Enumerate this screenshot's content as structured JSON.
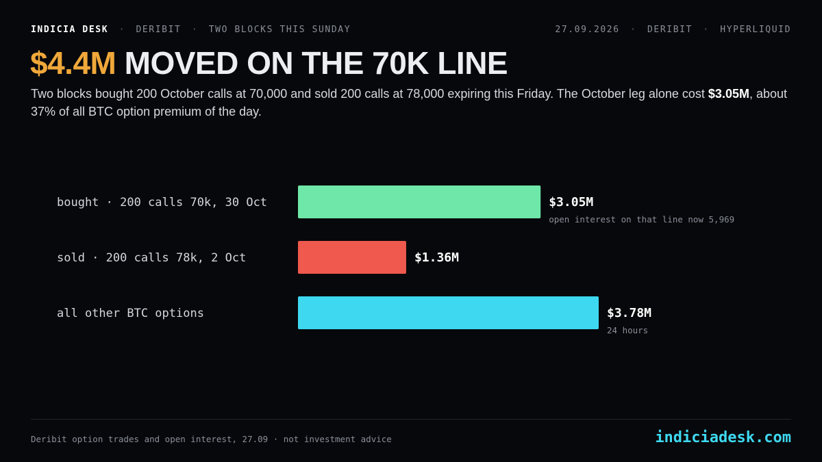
{
  "header": {
    "brand": "INDICIA DESK",
    "tagline_1": "DERIBIT",
    "tagline_2": "TWO BLOCKS THIS SUNDAY",
    "date": "27.09.2026",
    "venue_1": "DERIBIT",
    "venue_2": "HYPERLIQUID",
    "separator": "·"
  },
  "headline": {
    "accent": "$4.4M",
    "rest": "MOVED ON THE 70K LINE"
  },
  "subtitle": {
    "text_1": "Two blocks bought 200 October calls at 70,000 and sold 200 calls at 78,000 expiring this Friday. The October leg alone cost ",
    "bold": "$3.05M",
    "text_2": ", about 37% of all BTC option premium of the day."
  },
  "chart_data": {
    "type": "bar",
    "orientation": "horizontal",
    "categories": [
      "bought · 200 calls 70k, 30 Oct",
      "sold · 200 calls 78k, 2 Oct",
      "all other BTC options"
    ],
    "values": [
      3.05,
      1.36,
      3.78
    ],
    "value_labels": [
      "$3.05M",
      "$1.36M",
      "$3.78M"
    ],
    "notes": [
      "open interest on that line now 5,969",
      "",
      "24 hours"
    ],
    "colors": [
      "#6ee7a8",
      "#f0594d",
      "#3ed8f0"
    ],
    "unit": "$M",
    "xlim": [
      0,
      3.78
    ],
    "grid": false,
    "legend": "none"
  },
  "footer": {
    "source": "Deribit option trades and open interest, 27.09 · not investment advice",
    "site": "indiciadesk.com"
  }
}
